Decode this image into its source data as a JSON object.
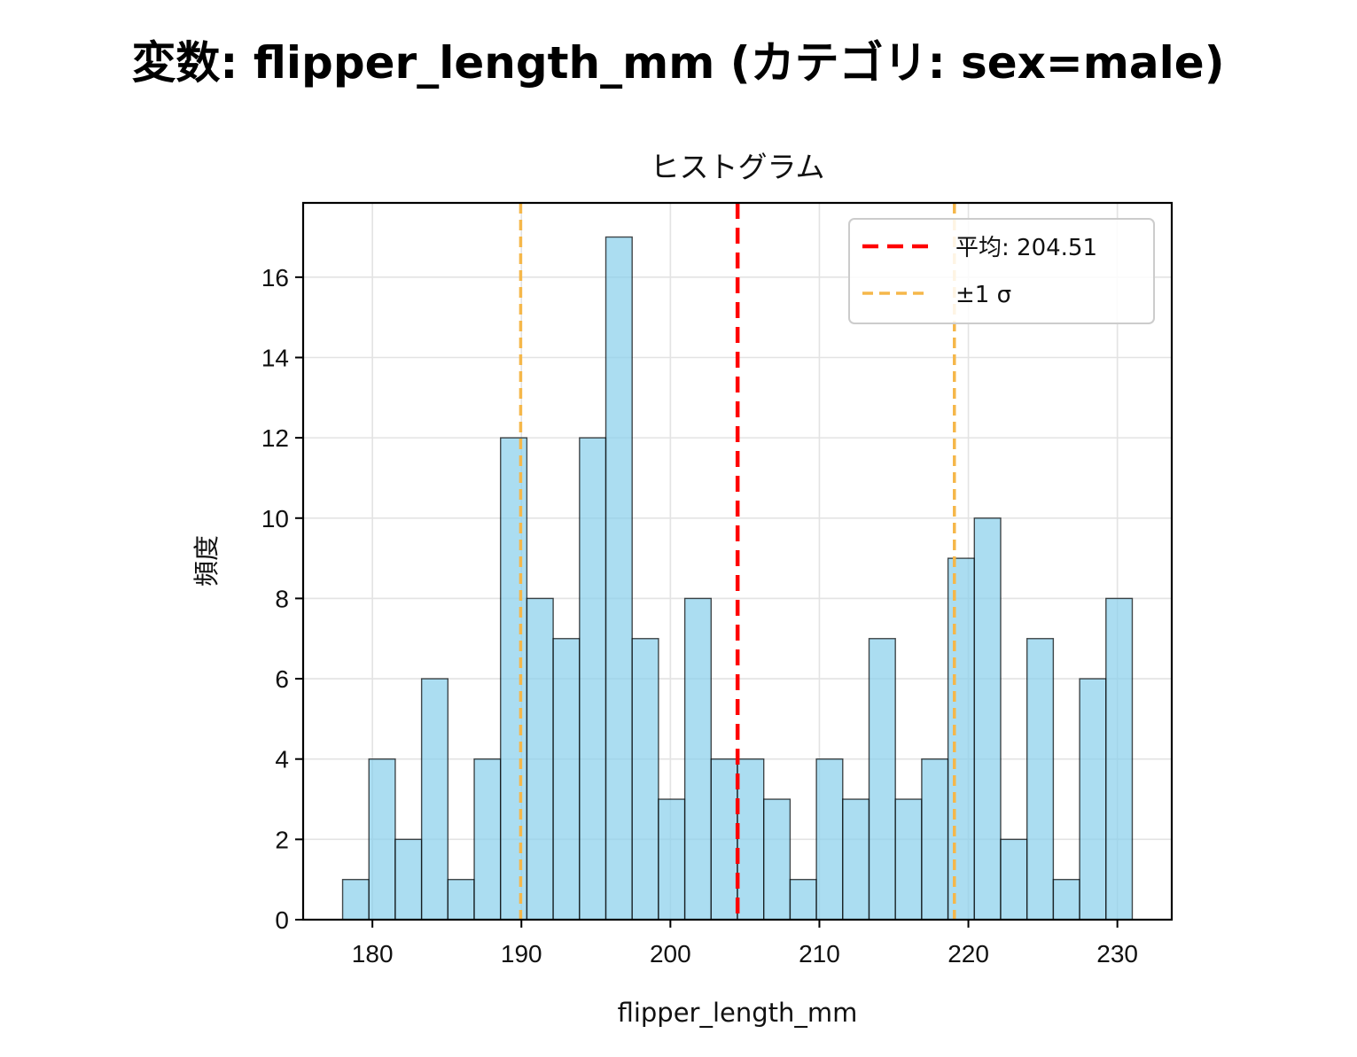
{
  "figure": {
    "suptitle": "変数: flipper_length_mm (カテゴリ: sex=male)"
  },
  "chart_data": {
    "type": "bar",
    "subtype": "histogram",
    "title": "ヒストグラム",
    "xlabel": "flipper_length_mm",
    "ylabel": "頻度",
    "xlim": [
      175.35,
      233.65
    ],
    "ylim": [
      0,
      17.85
    ],
    "grid": true,
    "bin_start": 178,
    "bin_width": 1.7667,
    "counts": [
      1,
      4,
      2,
      6,
      1,
      4,
      12,
      8,
      7,
      12,
      17,
      7,
      3,
      8,
      4,
      4,
      3,
      1,
      4,
      3,
      7,
      3,
      4,
      9,
      10,
      2,
      7,
      1,
      6,
      8
    ],
    "x_ticks": [
      180,
      190,
      200,
      210,
      220,
      230
    ],
    "y_ticks": [
      0,
      2,
      4,
      6,
      8,
      10,
      12,
      14,
      16
    ],
    "bar_color": "#87CEEB",
    "bar_edge_color": "#000000",
    "mean": {
      "value": 204.51,
      "color": "#FF0000",
      "legend": "平均: 204.51"
    },
    "std_band": {
      "lower": 189.95,
      "upper": 219.06,
      "color": "#F5B74A",
      "legend": "±1 σ"
    },
    "legend_position": "upper right"
  }
}
